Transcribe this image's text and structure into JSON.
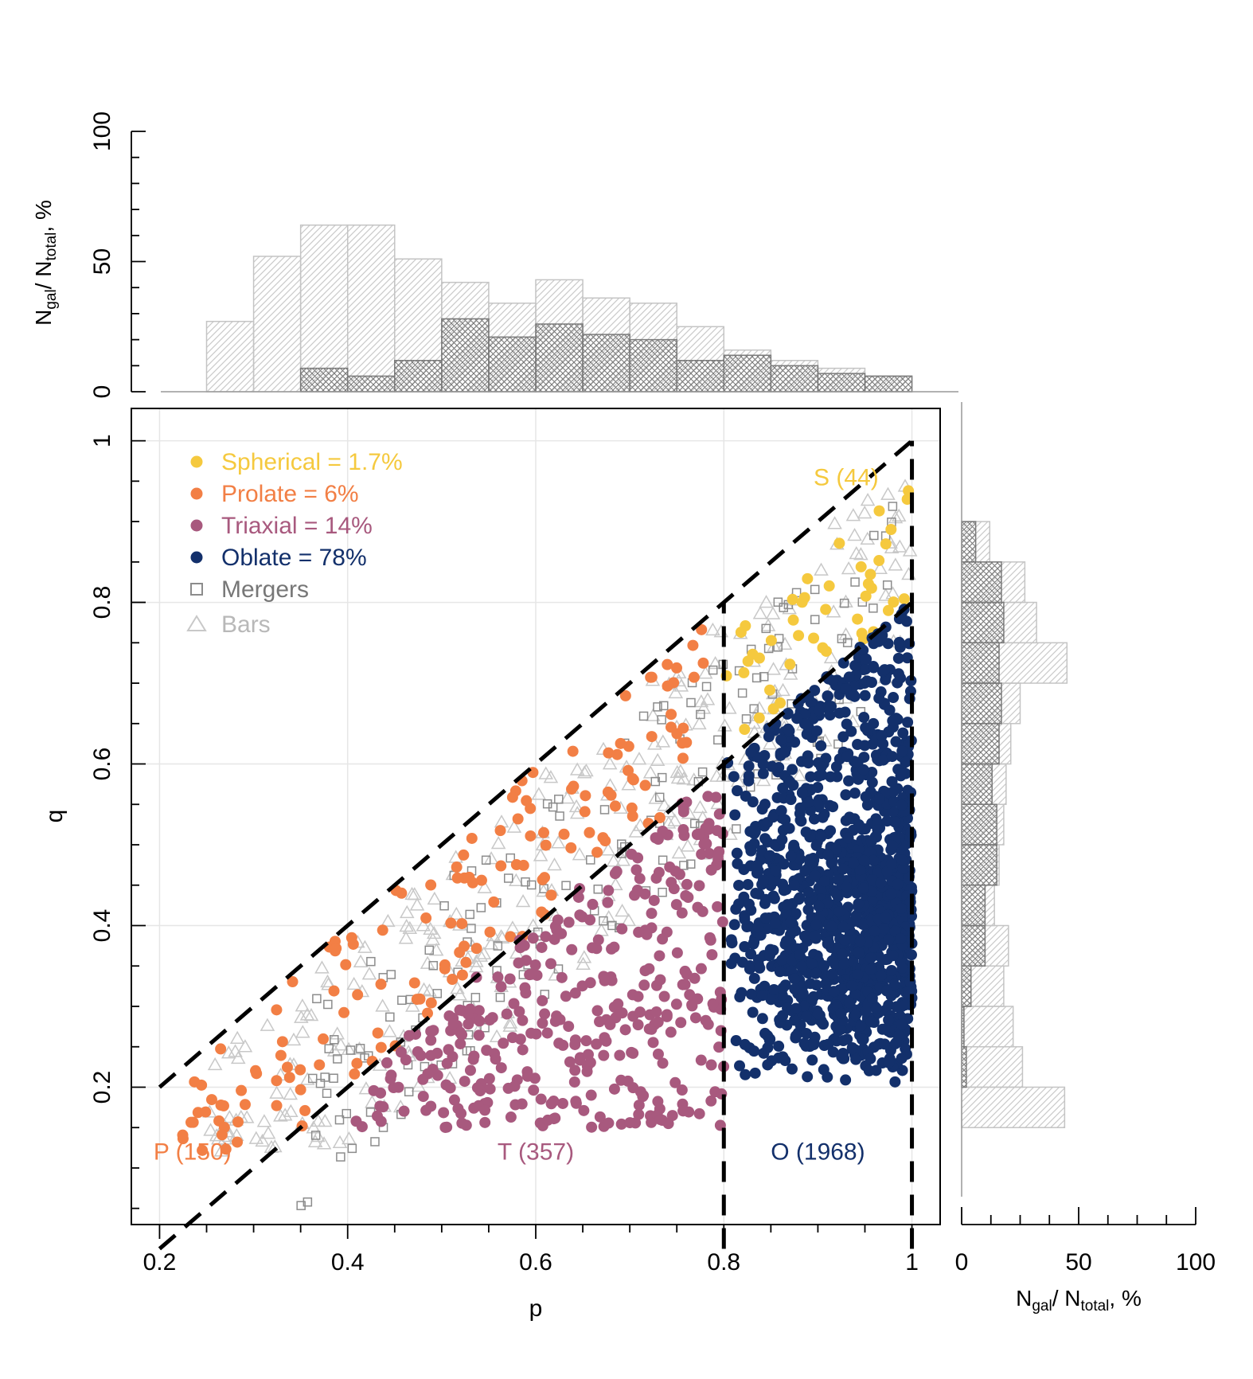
{
  "chart_data": [
    {
      "id": "main",
      "type": "scatter",
      "xlabel": "p",
      "ylabel": "q",
      "xlim": [
        0.17,
        1.03
      ],
      "ylim": [
        0.03,
        1.04
      ],
      "xticks": [
        "0.2",
        "0.4",
        "0.6",
        "0.8",
        "1"
      ],
      "xtick_values": [
        0.2,
        0.4,
        0.6,
        0.8,
        1.0
      ],
      "yticks": [
        "0.2",
        "0.4",
        "0.6",
        "0.8",
        "1"
      ],
      "ytick_values": [
        0.2,
        0.4,
        0.6,
        0.8,
        1.0
      ],
      "grid": true,
      "legend_position": "top-left",
      "legend": [
        {
          "label": "Spherical = 1.7%",
          "marker": "filled-circle",
          "color": "#f5c93e"
        },
        {
          "label": "Prolate = 6%",
          "marker": "filled-circle",
          "color": "#f27f45"
        },
        {
          "label": "Triaxial = 14%",
          "marker": "filled-circle",
          "color": "#a8597e"
        },
        {
          "label": "Oblate = 78%",
          "marker": "filled-circle",
          "color": "#13306b"
        },
        {
          "label": "Mergers",
          "marker": "open-square",
          "color": "#8c8c8c"
        },
        {
          "label": "Bars",
          "marker": "open-triangle",
          "color": "#c8c8c8"
        }
      ],
      "region_labels": [
        {
          "text": "S (44)",
          "p": 0.93,
          "q": 0.955,
          "color": "#f5c93e"
        },
        {
          "text": "P (150)",
          "p": 0.235,
          "q": 0.12,
          "color": "#f27f45"
        },
        {
          "text": "T (357)",
          "p": 0.6,
          "q": 0.12,
          "color": "#a8597e"
        },
        {
          "text": "O (1968)",
          "p": 0.9,
          "q": 0.12,
          "color": "#13306b"
        }
      ],
      "boundary_lines": [
        {
          "points": [
            [
              0.2,
              0.2
            ],
            [
              1.0,
              1.0
            ]
          ]
        },
        {
          "points": [
            [
              0.2,
              0.0
            ],
            [
              1.0,
              0.8
            ]
          ]
        },
        {
          "points": [
            [
              0.8,
              0.0
            ],
            [
              0.8,
              0.8
            ]
          ]
        },
        {
          "points": [
            [
              1.0,
              0.0
            ],
            [
              1.0,
              1.0
            ]
          ]
        }
      ],
      "series": [
        {
          "name": "Spherical",
          "color": "#f5c93e",
          "count": 44,
          "p_range": [
            0.8,
            1.0
          ],
          "q_offset_range": [
            0.0,
            0.2
          ]
        },
        {
          "name": "Prolate",
          "color": "#f27f45",
          "count": 150,
          "p_range": [
            0.22,
            0.8
          ],
          "q_offset_range": [
            0.0,
            0.2
          ]
        },
        {
          "name": "Triaxial",
          "color": "#a8597e",
          "count": 357,
          "p_range": [
            0.4,
            0.8
          ],
          "q_offset_range": [
            0.2,
            0.6
          ]
        },
        {
          "name": "Oblate",
          "color": "#13306b",
          "count": 1968,
          "p_range": [
            0.8,
            1.0
          ],
          "q_offset_range": [
            0.2,
            0.85
          ]
        },
        {
          "name": "Mergers",
          "color": "#8c8c8c",
          "count": 160,
          "p_range": [
            0.35,
            1.0
          ],
          "q_offset_range": [
            0.05,
            0.3
          ]
        },
        {
          "name": "Bars",
          "color": "#c8c8c8",
          "count": 300,
          "p_range": [
            0.25,
            1.0
          ],
          "q_offset_range": [
            0.05,
            0.3
          ]
        }
      ]
    },
    {
      "id": "top-histogram",
      "type": "bar",
      "xlabel": "",
      "ylabel": "N_gal/ N_total, %",
      "ylim": [
        0,
        100
      ],
      "yticks": [
        "0",
        "50",
        "100"
      ],
      "ytick_values": [
        0,
        50,
        100
      ],
      "bin_edges": [
        0.25,
        0.3,
        0.35,
        0.4,
        0.45,
        0.5,
        0.55,
        0.6,
        0.65,
        0.7,
        0.75,
        0.8,
        0.85,
        0.9,
        0.95,
        1.0
      ],
      "series": [
        {
          "name": "Bars",
          "pattern": "light-hatch",
          "values": [
            27,
            52,
            64,
            64,
            51,
            42,
            34,
            43,
            36,
            34,
            25,
            16,
            12,
            9,
            6
          ]
        },
        {
          "name": "Mergers",
          "pattern": "dark-crosshatch",
          "values": [
            0,
            0,
            9,
            6,
            12,
            28,
            21,
            26,
            22,
            20,
            12,
            14,
            10,
            7,
            6
          ]
        }
      ]
    },
    {
      "id": "right-histogram",
      "type": "bar",
      "orientation": "horizontal",
      "xlabel": "N_gal/ N_total, %",
      "xlim": [
        0,
        100
      ],
      "xticks": [
        "0",
        "50",
        "100"
      ],
      "xtick_values": [
        0,
        50,
        100
      ],
      "bin_edges": [
        0.15,
        0.2,
        0.25,
        0.3,
        0.35,
        0.4,
        0.45,
        0.5,
        0.55,
        0.6,
        0.65,
        0.7,
        0.75,
        0.8,
        0.85,
        0.9
      ],
      "series": [
        {
          "name": "Bars",
          "pattern": "light-hatch",
          "values": [
            44,
            26,
            22,
            18,
            20,
            14,
            16,
            18,
            19,
            21,
            25,
            45,
            32,
            27,
            12
          ]
        },
        {
          "name": "Mergers",
          "pattern": "dark-crosshatch",
          "values": [
            0,
            2,
            1,
            4,
            10,
            10,
            15,
            15,
            13,
            16,
            17,
            16,
            18,
            17,
            6
          ]
        }
      ]
    }
  ]
}
